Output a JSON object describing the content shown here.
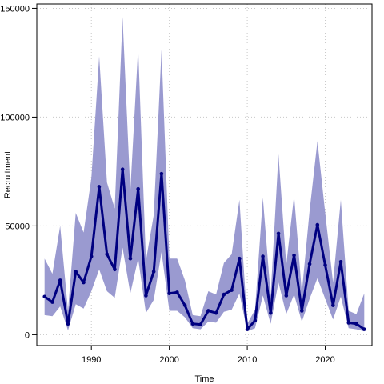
{
  "chart_data": {
    "type": "line",
    "title": "",
    "xlabel": "Time",
    "ylabel": "Recruitment",
    "xlim": [
      1983,
      2026
    ],
    "ylim": [
      -5000,
      152000
    ],
    "xticks": [
      1990,
      2000,
      2010,
      2020
    ],
    "yticks": [
      0,
      50000,
      100000,
      150000
    ],
    "grid": true,
    "colors": {
      "line": "#000080",
      "band": "#9a9ad0",
      "grid": "#c8c8c8",
      "frame": "#000000"
    },
    "series": [
      {
        "x": [
          1984,
          1985,
          1986,
          1987,
          1988,
          1989,
          1990,
          1991,
          1992,
          1993,
          1994,
          1995,
          1996,
          1997,
          1998,
          1999,
          2000,
          2001,
          2002,
          2003,
          2004,
          2005,
          2006,
          2007,
          2008,
          2009,
          2010,
          2011,
          2012,
          2013,
          2014,
          2015,
          2016,
          2017,
          2018,
          2019,
          2020,
          2021,
          2022,
          2023,
          2024,
          2025
        ],
        "values": [
          17500,
          15000,
          25000,
          5000,
          29000,
          24000,
          36000,
          68000,
          37000,
          30000,
          76000,
          35000,
          67000,
          18000,
          29000,
          74000,
          19000,
          19500,
          13500,
          5000,
          4700,
          11000,
          10000,
          18500,
          20500,
          35000,
          2500,
          6500,
          36000,
          10000,
          46500,
          18000,
          36500,
          11000,
          32500,
          50500,
          32000,
          13500,
          33500,
          5500,
          5000,
          2500
        ],
        "lower": [
          9000,
          8500,
          13000,
          2000,
          14000,
          12000,
          20000,
          30000,
          20000,
          17000,
          40000,
          19000,
          35000,
          10000,
          16000,
          38000,
          11000,
          11000,
          8000,
          3000,
          2500,
          6000,
          5500,
          10500,
          11500,
          19000,
          1500,
          3000,
          18000,
          5000,
          24000,
          9500,
          18500,
          6000,
          16500,
          26000,
          16500,
          7000,
          17500,
          3000,
          2500,
          1500
        ],
        "upper": [
          35000,
          28000,
          50000,
          11000,
          56000,
          47000,
          72000,
          128000,
          70000,
          58000,
          146000,
          66000,
          132000,
          34000,
          55000,
          131000,
          35000,
          35000,
          25000,
          9000,
          8500,
          20000,
          18500,
          33000,
          37000,
          62000,
          5000,
          11500,
          63000,
          18000,
          83000,
          32000,
          64000,
          19500,
          57000,
          89000,
          56000,
          24000,
          62000,
          11000,
          9500,
          19000
        ]
      }
    ]
  }
}
